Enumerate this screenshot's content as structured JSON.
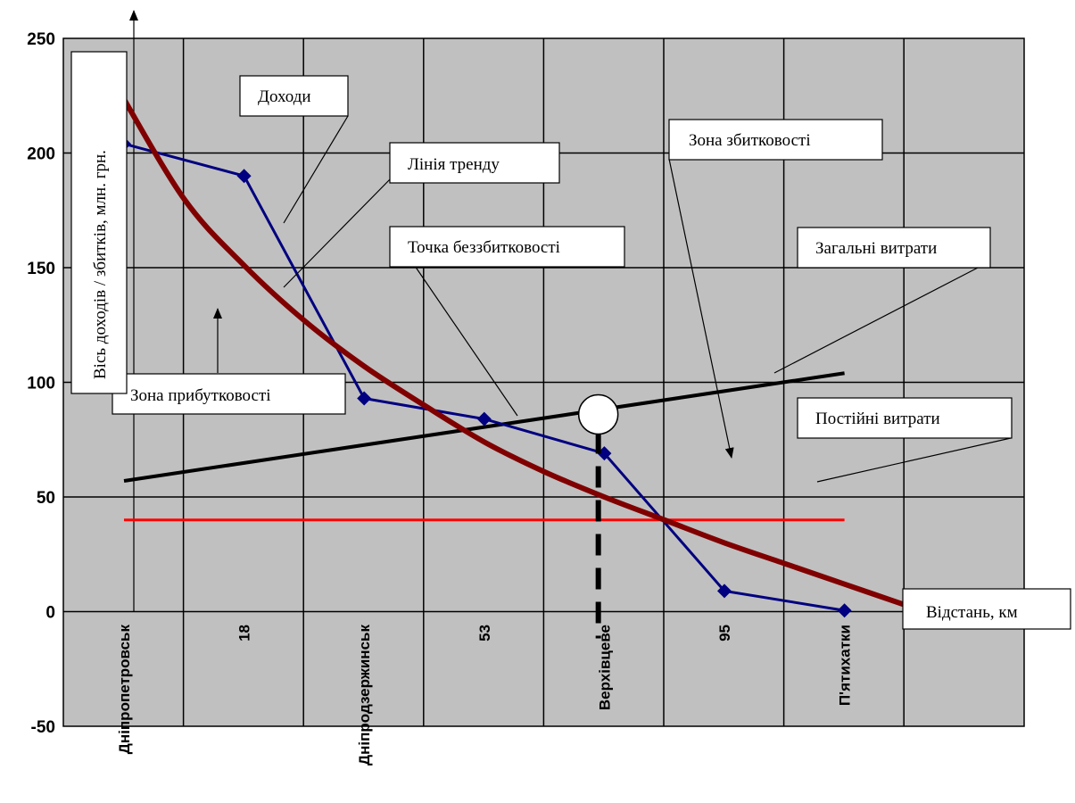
{
  "chart_data": {
    "type": "line",
    "ylabel": "Вісь доходів / збитків, млн. грн.",
    "xlabel": "Відстань, км",
    "ylim": [
      -50,
      250
    ],
    "yticks": [
      -50,
      0,
      50,
      100,
      150,
      200,
      250
    ],
    "categories": [
      "Дніпропетровськ",
      "18",
      "Дніпродзержинськ",
      "53",
      "Верхівцеве",
      "95",
      "П'ятихатки"
    ],
    "grid": true,
    "colors": {
      "plot_bg": "#c0c0c0",
      "income": "#000080",
      "trend": "#800000",
      "total_costs": "#000000",
      "fixed_costs": "#ff0000"
    },
    "series": [
      {
        "key": "income",
        "x": [
          0,
          1,
          2,
          3,
          4,
          5,
          6
        ],
        "values": [
          204,
          190,
          93,
          84,
          69,
          9,
          0.5
        ]
      },
      {
        "key": "trend",
        "type": "curve",
        "x": [
          -0.05,
          0.5,
          1,
          1.5,
          2,
          2.5,
          3,
          3.5,
          4,
          4.5,
          5,
          5.5,
          6,
          6.5
        ],
        "values": [
          228,
          180,
          151,
          127,
          107,
          90,
          74,
          61,
          50,
          40,
          30,
          21,
          12,
          3
        ]
      },
      {
        "key": "total_costs",
        "x": [
          0,
          6
        ],
        "values": [
          57,
          104
        ]
      },
      {
        "key": "fixed_costs",
        "x": [
          0,
          6
        ],
        "values": [
          40,
          40
        ]
      }
    ],
    "breakeven_point": {
      "x": 3.95,
      "y": 86
    },
    "annotations": {
      "income": "Доходи",
      "trend": "Лінія тренду",
      "breakeven": "Точка беззбитковості",
      "loss_zone": "Зона збитковості",
      "total_costs": "Загальні витрати",
      "profit_zone": "Зона прибутковості",
      "fixed_costs": "Постійні витрати"
    }
  }
}
